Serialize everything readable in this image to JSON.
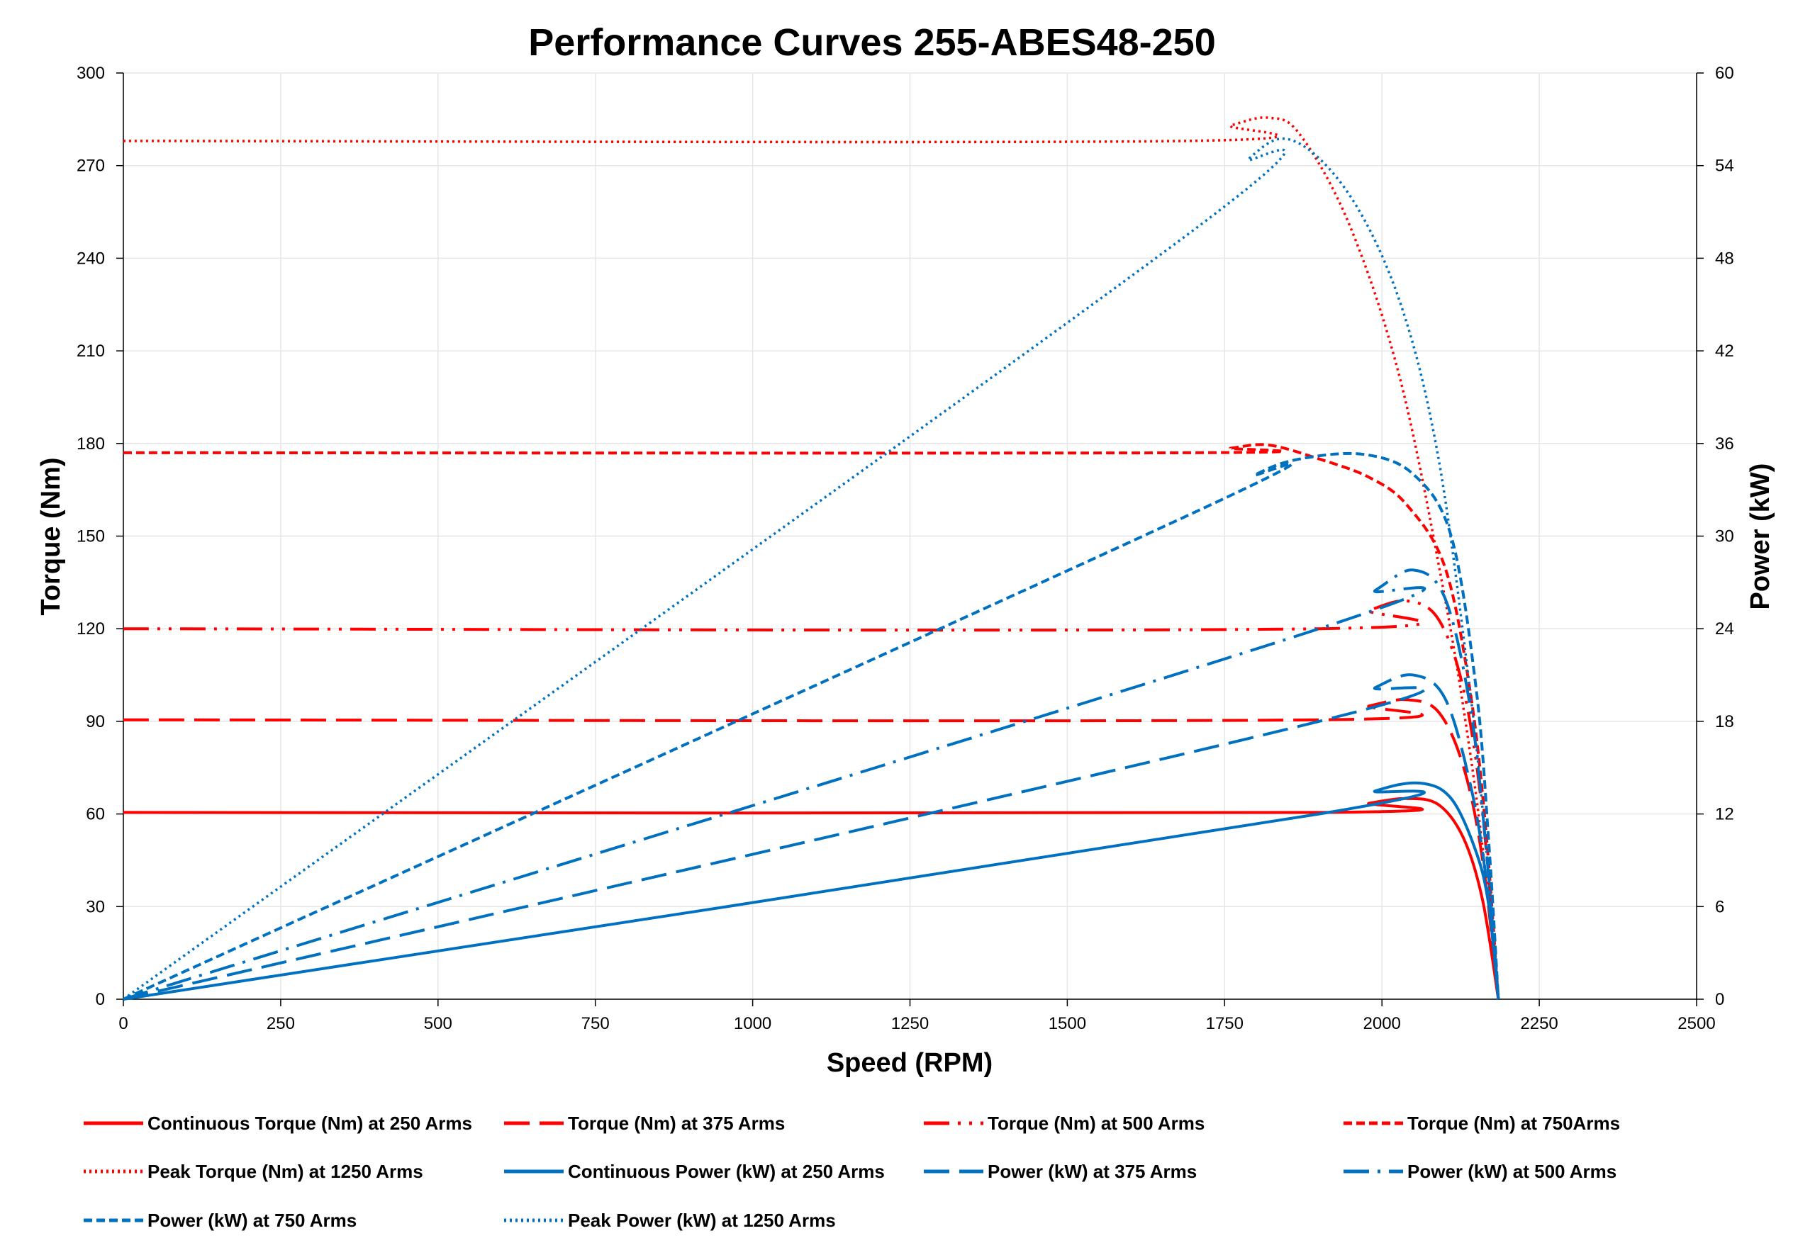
{
  "chart_data": {
    "type": "line",
    "title": "Performance Curves 255-ABES48-250",
    "xlabel": "Speed (RPM)",
    "ylabel": "Torque (Nm)",
    "y2label": "Power (kW)",
    "xlim": [
      0,
      2500
    ],
    "ylim": [
      0,
      300
    ],
    "y2lim": [
      0,
      60
    ],
    "xticks": [
      0,
      250,
      500,
      750,
      1000,
      1250,
      1500,
      1750,
      2000,
      2250,
      2500
    ],
    "yticks": [
      0,
      30,
      60,
      90,
      120,
      150,
      180,
      210,
      240,
      270,
      300
    ],
    "y2ticks": [
      0,
      6,
      12,
      18,
      24,
      30,
      36,
      42,
      48,
      54,
      60
    ],
    "grid": true,
    "legend_placement": "bottom",
    "series": [
      {
        "name": "Continuous Torque (Nm) at 250 Arms",
        "axis": "left",
        "color": "#FF0000",
        "dash": "solid",
        "x": [
          0,
          1900,
          1980,
          2040,
          2090,
          2130,
          2160,
          2185
        ],
        "y": [
          60.5,
          60.5,
          63.5,
          65,
          63,
          52,
          32,
          0
        ]
      },
      {
        "name": "Torque (Nm) at 375 Arms",
        "axis": "left",
        "color": "#FF0000",
        "dash": "longdash",
        "x": [
          0,
          1900,
          1980,
          2040,
          2090,
          2130,
          2160,
          2185
        ],
        "y": [
          90.5,
          90.5,
          95,
          97,
          93,
          75,
          45,
          0
        ]
      },
      {
        "name": "Torque (Nm) at 500 Arms",
        "axis": "left",
        "color": "#FF0000",
        "dash": "dashdotdot",
        "x": [
          0,
          1900,
          1980,
          2040,
          2090,
          2130,
          2160,
          2185
        ],
        "y": [
          120,
          120,
          126,
          129,
          123,
          100,
          60,
          0
        ]
      },
      {
        "name": "Torque (Nm) at 750Arms",
        "axis": "left",
        "color": "#FF0000",
        "dash": "shortdash",
        "x": [
          0,
          1700,
          1760,
          1820,
          1900,
          1980,
          2040,
          2100,
          2140,
          2165,
          2185
        ],
        "y": [
          177,
          177,
          178.5,
          179.5,
          175,
          169,
          160,
          140,
          100,
          55,
          0
        ]
      },
      {
        "name": "Peak Torque (Nm) at 1250  Arms",
        "axis": "left",
        "color": "#FF0000",
        "dash": "dot",
        "x": [
          0,
          1690,
          1760,
          1820,
          1870,
          1950,
          2030,
          2100,
          2140,
          2165,
          2185
        ],
        "y": [
          278,
          278,
          283,
          285.5,
          280,
          250,
          200,
          130,
          80,
          40,
          0
        ]
      },
      {
        "name": "Continuous Power (kW) at 250 Arms",
        "axis": "right",
        "color": "#0070C0",
        "dash": "solid",
        "x": [
          0,
          1900,
          1990,
          2060,
          2110,
          2150,
          2170,
          2185
        ],
        "y": [
          0,
          12,
          13.5,
          14,
          13,
          9.5,
          6,
          0
        ]
      },
      {
        "name": "Power (kW) at 375 Arms",
        "axis": "right",
        "color": "#0070C0",
        "dash": "longdash",
        "x": [
          0,
          1900,
          1990,
          2050,
          2100,
          2140,
          2165,
          2185
        ],
        "y": [
          0,
          18,
          20.2,
          21,
          19.5,
          14,
          8,
          0
        ]
      },
      {
        "name": "Power (kW) at 500 Arms",
        "axis": "right",
        "color": "#0070C0",
        "dash": "dashdot",
        "x": [
          0,
          1900,
          1990,
          2050,
          2100,
          2140,
          2165,
          2185
        ],
        "y": [
          0,
          24,
          26.5,
          27.8,
          26,
          19,
          10,
          0
        ]
      },
      {
        "name": "Power (kW) at 750 Arms",
        "axis": "right",
        "color": "#0070C0",
        "dash": "shortdash",
        "x": [
          0,
          1700,
          1800,
          1870,
          1970,
          2050,
          2110,
          2150,
          2170,
          2185
        ],
        "y": [
          0,
          31.5,
          34,
          35,
          35.3,
          34,
          30,
          20,
          10,
          0
        ]
      },
      {
        "name": "Peak Power (kW) at 1250 Arms",
        "axis": "right",
        "color": "#0070C0",
        "dash": "dot",
        "x": [
          0,
          1690,
          1790,
          1860,
          1950,
          2030,
          2090,
          2140,
          2165,
          2185
        ],
        "y": [
          0,
          49.5,
          54.5,
          55.6,
          52,
          45,
          35,
          20,
          10,
          0
        ]
      }
    ]
  }
}
